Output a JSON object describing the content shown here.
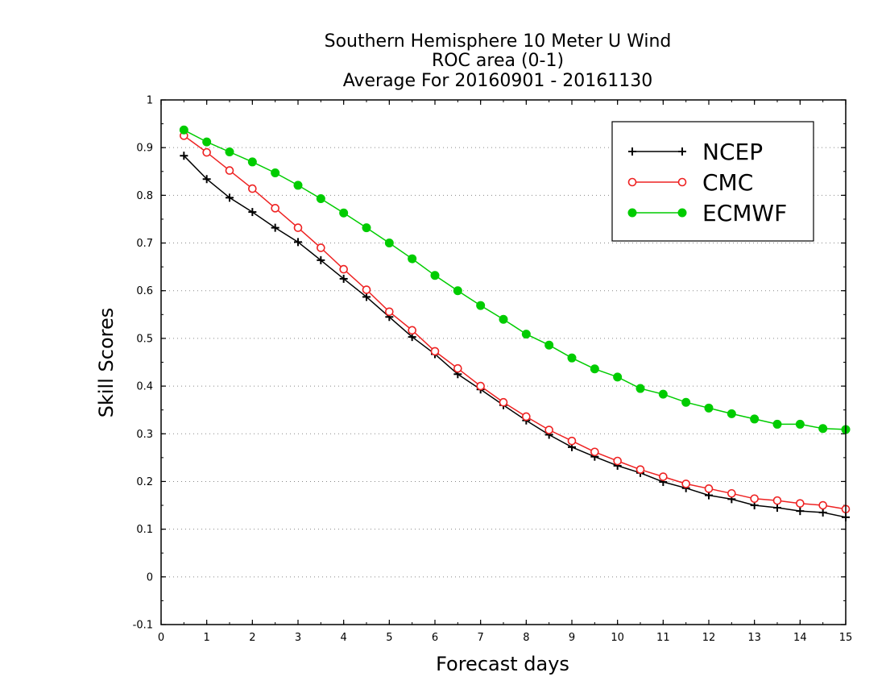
{
  "chart_data": {
    "type": "line",
    "title": [
      "Southern Hemisphere 10 Meter U Wind",
      "ROC area (0-1)",
      "Average For 20160901 - 20161130"
    ],
    "xlabel": "Forecast days",
    "ylabel": "Skill Scores",
    "xlim": [
      0,
      15
    ],
    "ylim": [
      -0.1,
      1
    ],
    "xticks": [
      "0",
      "1",
      "2",
      "3",
      "4",
      "5",
      "6",
      "7",
      "8",
      "9",
      "10",
      "11",
      "12",
      "13",
      "14",
      "15"
    ],
    "yticks": [
      "-0.1",
      "0",
      "0.1",
      "0.2",
      "0.3",
      "0.4",
      "0.5",
      "0.6",
      "0.7",
      "0.8",
      "0.9",
      "1"
    ],
    "grid": "horizontal dotted",
    "legend_position": "top-right",
    "x": [
      0.5,
      1,
      1.5,
      2,
      2.5,
      3,
      3.5,
      4,
      4.5,
      5,
      5.5,
      6,
      6.5,
      7,
      7.5,
      8,
      8.5,
      9,
      9.5,
      10,
      10.5,
      11,
      11.5,
      12,
      12.5,
      13,
      13.5,
      14,
      14.5,
      15
    ],
    "series": [
      {
        "name": "NCEP",
        "color": "#000000",
        "marker": "plus",
        "values": [
          0.883,
          0.834,
          0.795,
          0.765,
          0.732,
          0.702,
          0.664,
          0.625,
          0.587,
          0.545,
          0.503,
          0.467,
          0.425,
          0.393,
          0.36,
          0.328,
          0.298,
          0.272,
          0.252,
          0.233,
          0.218,
          0.199,
          0.186,
          0.171,
          0.163,
          0.15,
          0.145,
          0.138,
          0.135,
          0.125
        ]
      },
      {
        "name": "CMC",
        "color": "#ee2222",
        "marker": "open-circle",
        "values": [
          0.925,
          0.89,
          0.852,
          0.814,
          0.773,
          0.732,
          0.69,
          0.645,
          0.602,
          0.556,
          0.517,
          0.473,
          0.437,
          0.4,
          0.366,
          0.336,
          0.308,
          0.285,
          0.262,
          0.243,
          0.225,
          0.21,
          0.195,
          0.185,
          0.175,
          0.164,
          0.16,
          0.154,
          0.15,
          0.142
        ]
      },
      {
        "name": "ECMWF",
        "color": "#00cc00",
        "marker": "filled-circle",
        "values": [
          0.937,
          0.912,
          0.891,
          0.87,
          0.847,
          0.821,
          0.793,
          0.763,
          0.732,
          0.7,
          0.667,
          0.632,
          0.6,
          0.569,
          0.54,
          0.509,
          0.486,
          0.459,
          0.436,
          0.419,
          0.395,
          0.383,
          0.366,
          0.354,
          0.342,
          0.331,
          0.32,
          0.32,
          0.311,
          0.309
        ]
      }
    ]
  }
}
